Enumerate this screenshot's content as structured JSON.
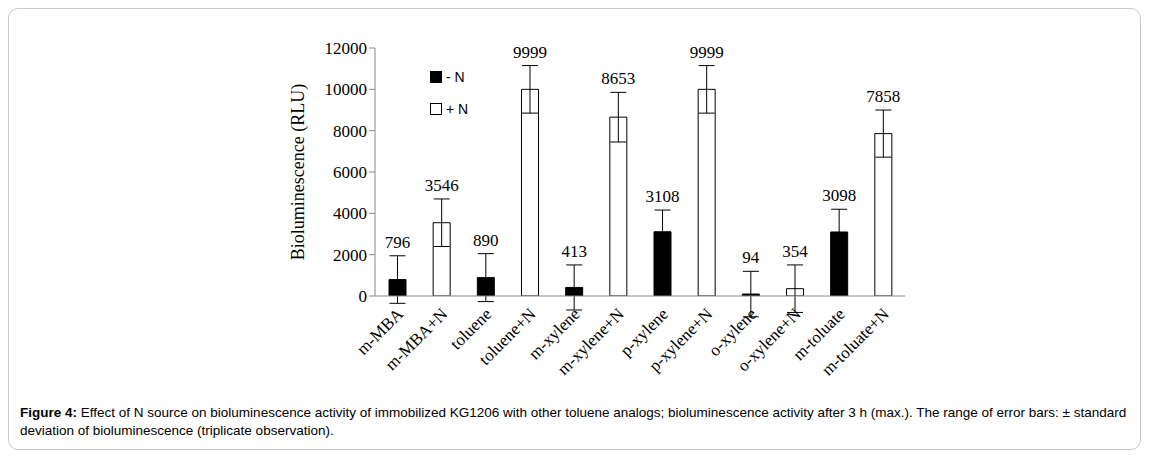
{
  "chart_data": {
    "type": "bar",
    "caption_label": "Figure 4:",
    "caption": "Effect of N source on bioluminescence activity of immobilized KG1206 with other toluene analogs; bioluminescence activity after 3 h (max.). The range of error bars: ± standard deviation of bioluminescence (triplicate observation).",
    "y_label": "Bioluminescence (RLU)",
    "categories": [
      "m-MBA",
      "m-MBA+N",
      "toluene",
      "toluene+N",
      "m-xylene",
      "m-xylene+N",
      "p-xylene",
      "p-xylene+N",
      "o-xylene",
      "o-xylene+N",
      "m-toluate",
      "m-toluate+N"
    ],
    "series": [
      {
        "name": "- N",
        "color": "#000000",
        "values": [
          796,
          null,
          890,
          null,
          413,
          null,
          3108,
          null,
          94,
          null,
          3098,
          null
        ],
        "errors": [
          1150,
          null,
          1160,
          null,
          1090,
          null,
          1050,
          null,
          1100,
          null,
          1100,
          null
        ]
      },
      {
        "name": "+ N",
        "color": "#ffffff",
        "values": [
          null,
          3546,
          null,
          9999,
          null,
          8653,
          null,
          9999,
          null,
          354,
          null,
          7858
        ],
        "errors": [
          null,
          1150,
          null,
          1150,
          null,
          1200,
          null,
          1150,
          null,
          1150,
          null,
          1140
        ]
      }
    ],
    "ylim": [
      0,
      12000
    ],
    "yticks": [
      0,
      2000,
      4000,
      6000,
      8000,
      10000,
      12000
    ],
    "grid": false,
    "data_labels": true,
    "legend": "upper left"
  }
}
